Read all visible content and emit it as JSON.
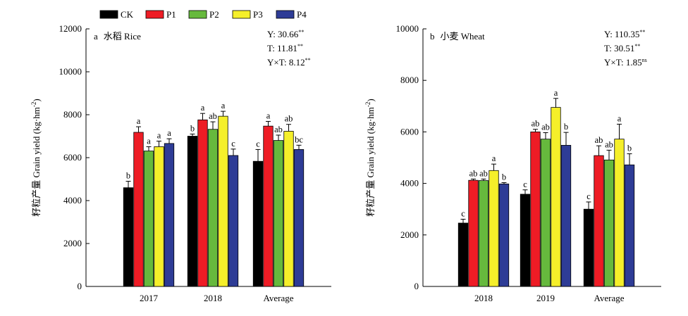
{
  "colors": {
    "CK": "#000000",
    "P1": "#ee1c25",
    "P2": "#66b93d",
    "P3": "#f5ef2a",
    "P4": "#2e3c96"
  },
  "legend": {
    "placement": "top",
    "entries": [
      "CK",
      "P1",
      "P2",
      "P3",
      "P4"
    ]
  },
  "chart_data": [
    {
      "type": "bar",
      "panel_label": "a",
      "title": "水稻 Rice",
      "ylabel": "籽粒产量 Grain yield (kg·hm",
      "ylabel_sup": "-2",
      "ylabel_end": ")",
      "ylim": [
        0,
        12000
      ],
      "yticks": [
        0,
        2000,
        4000,
        6000,
        8000,
        10000,
        12000
      ],
      "categories": [
        "2017",
        "2018",
        "Average"
      ],
      "series": [
        {
          "name": "CK",
          "values": [
            4600,
            7000,
            5830
          ],
          "errors": [
            300,
            100,
            550
          ],
          "letters": [
            "b",
            "b",
            "c"
          ]
        },
        {
          "name": "P1",
          "values": [
            7180,
            7760,
            7470
          ],
          "errors": [
            260,
            300,
            220
          ],
          "letters": [
            "a",
            "a",
            "a"
          ]
        },
        {
          "name": "P2",
          "values": [
            6310,
            7320,
            6800
          ],
          "errors": [
            200,
            350,
            250
          ],
          "letters": [
            "a",
            "ab",
            "ab"
          ]
        },
        {
          "name": "P3",
          "values": [
            6510,
            7930,
            7230
          ],
          "errors": [
            260,
            230,
            320
          ],
          "letters": [
            "a",
            "a",
            "ab"
          ]
        },
        {
          "name": "P4",
          "values": [
            6660,
            6100,
            6380
          ],
          "errors": [
            220,
            300,
            200
          ],
          "letters": [
            "a",
            "c",
            "bc"
          ]
        }
      ],
      "stats": [
        {
          "label": "Y: 30.66",
          "sup": "**"
        },
        {
          "label": "T: 11.81",
          "sup": "**"
        },
        {
          "label": "Y×T: 8.12",
          "sup": "**"
        }
      ]
    },
    {
      "type": "bar",
      "panel_label": "b",
      "title": "小麦 Wheat",
      "ylabel": "籽粒产量 Grain yield (kg·hm",
      "ylabel_sup": "-2",
      "ylabel_end": ")",
      "ylim": [
        0,
        10000
      ],
      "yticks": [
        0,
        2000,
        4000,
        6000,
        8000,
        10000
      ],
      "categories": [
        "2018",
        "2019",
        "Average"
      ],
      "series": [
        {
          "name": "CK",
          "values": [
            2460,
            3580,
            3000
          ],
          "errors": [
            150,
            170,
            280
          ],
          "letters": [
            "c",
            "c",
            "c"
          ]
        },
        {
          "name": "P1",
          "values": [
            4120,
            6000,
            5080
          ],
          "errors": [
            50,
            100,
            380
          ],
          "letters": [
            "ab",
            "ab",
            "ab"
          ]
        },
        {
          "name": "P2",
          "values": [
            4110,
            5720,
            4910
          ],
          "errors": [
            60,
            250,
            380
          ],
          "letters": [
            "ab",
            "ab",
            "ab"
          ]
        },
        {
          "name": "P3",
          "values": [
            4500,
            6950,
            5720
          ],
          "errors": [
            250,
            350,
            580
          ],
          "letters": [
            "a",
            "a",
            "a"
          ]
        },
        {
          "name": "P4",
          "values": [
            3980,
            5480,
            4720
          ],
          "errors": [
            50,
            500,
            430
          ],
          "letters": [
            "b",
            "b",
            "b"
          ]
        }
      ],
      "stats": [
        {
          "label": "Y: 110.35",
          "sup": "**"
        },
        {
          "label": "T: 30.51",
          "sup": "**"
        },
        {
          "label": "Y×T: 1.85",
          "sup": "ns"
        }
      ]
    }
  ]
}
